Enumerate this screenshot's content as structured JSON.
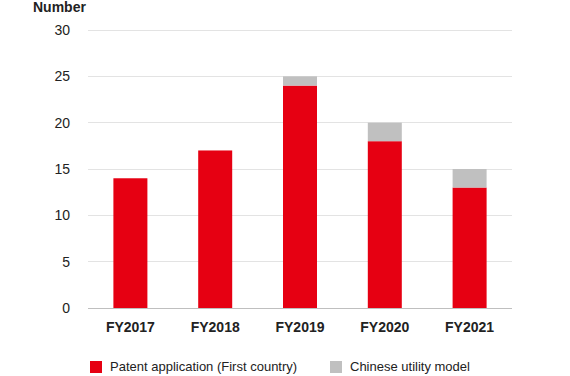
{
  "chart_data": {
    "type": "bar",
    "stacked": true,
    "ylabel": "Number",
    "categories": [
      "FY2017",
      "FY2018",
      "FY2019",
      "FY2020",
      "FY2021"
    ],
    "series": [
      {
        "name": "Patent application (First country)",
        "color": "#e60012",
        "values": [
          14,
          17,
          24,
          18,
          13
        ]
      },
      {
        "name": "Chinese utility model",
        "color": "#c0c0c0",
        "values": [
          0,
          0,
          1,
          2,
          2
        ]
      }
    ],
    "ylim": [
      0,
      30
    ],
    "yticks": [
      0,
      5,
      10,
      15,
      20,
      25,
      30
    ],
    "grid": true,
    "legend": "bottom"
  }
}
